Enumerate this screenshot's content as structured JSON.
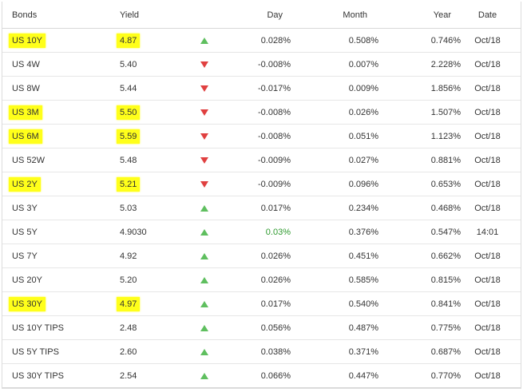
{
  "table": {
    "headers": {
      "bonds": "Bonds",
      "yield": "Yield",
      "day": "Day",
      "month": "Month",
      "year": "Year",
      "date": "Date"
    },
    "rows": [
      {
        "bond": "US 10Y",
        "yield": "4.87",
        "direction": "up",
        "day": "0.028%",
        "month": "0.508%",
        "year": "0.746%",
        "date": "Oct/18",
        "highlighted": true
      },
      {
        "bond": "US 4W",
        "yield": "5.40",
        "direction": "down",
        "day": "-0.008%",
        "month": "0.007%",
        "year": "2.228%",
        "date": "Oct/18",
        "highlighted": false
      },
      {
        "bond": "US 8W",
        "yield": "5.44",
        "direction": "down",
        "day": "-0.017%",
        "month": "0.009%",
        "year": "1.856%",
        "date": "Oct/18",
        "highlighted": false
      },
      {
        "bond": "US 3M",
        "yield": "5.50",
        "direction": "down",
        "day": "-0.008%",
        "month": "0.026%",
        "year": "1.507%",
        "date": "Oct/18",
        "highlighted": true
      },
      {
        "bond": "US 6M",
        "yield": "5.59",
        "direction": "down",
        "day": "-0.008%",
        "month": "0.051%",
        "year": "1.123%",
        "date": "Oct/18",
        "highlighted": true
      },
      {
        "bond": "US 52W",
        "yield": "5.48",
        "direction": "down",
        "day": "-0.009%",
        "month": "0.027%",
        "year": "0.881%",
        "date": "Oct/18",
        "highlighted": false
      },
      {
        "bond": "US 2Y",
        "yield": "5.21",
        "direction": "down",
        "day": "-0.009%",
        "month": "0.096%",
        "year": "0.653%",
        "date": "Oct/18",
        "highlighted": true
      },
      {
        "bond": "US 3Y",
        "yield": "5.03",
        "direction": "up",
        "day": "0.017%",
        "month": "0.234%",
        "year": "0.468%",
        "date": "Oct/18",
        "highlighted": false
      },
      {
        "bond": "US 5Y",
        "yield": "4.9030",
        "direction": "up",
        "day": "0.03%",
        "month": "0.376%",
        "year": "0.547%",
        "date": "14:01",
        "highlighted": false,
        "day_green": true
      },
      {
        "bond": "US 7Y",
        "yield": "4.92",
        "direction": "up",
        "day": "0.026%",
        "month": "0.451%",
        "year": "0.662%",
        "date": "Oct/18",
        "highlighted": false
      },
      {
        "bond": "US 20Y",
        "yield": "5.20",
        "direction": "up",
        "day": "0.026%",
        "month": "0.585%",
        "year": "0.815%",
        "date": "Oct/18",
        "highlighted": false
      },
      {
        "bond": "US 30Y",
        "yield": "4.97",
        "direction": "up",
        "day": "0.017%",
        "month": "0.540%",
        "year": "0.841%",
        "date": "Oct/18",
        "highlighted": true
      },
      {
        "bond": "US 10Y TIPS",
        "yield": "2.48",
        "direction": "up",
        "day": "0.056%",
        "month": "0.487%",
        "year": "0.775%",
        "date": "Oct/18",
        "highlighted": false
      },
      {
        "bond": "US 5Y TIPS",
        "yield": "2.60",
        "direction": "up",
        "day": "0.038%",
        "month": "0.371%",
        "year": "0.687%",
        "date": "Oct/18",
        "highlighted": false
      },
      {
        "bond": "US 30Y TIPS",
        "yield": "2.54",
        "direction": "up",
        "day": "0.066%",
        "month": "0.447%",
        "year": "0.770%",
        "date": "Oct/18",
        "highlighted": false
      }
    ]
  },
  "colors": {
    "highlight": "#ffff1a",
    "up_arrow": "#5fbf5f",
    "down_arrow": "#e04040",
    "positive_text": "#2e9a2e"
  },
  "icons": {
    "up": "triangle-up-icon",
    "down": "triangle-down-icon"
  }
}
